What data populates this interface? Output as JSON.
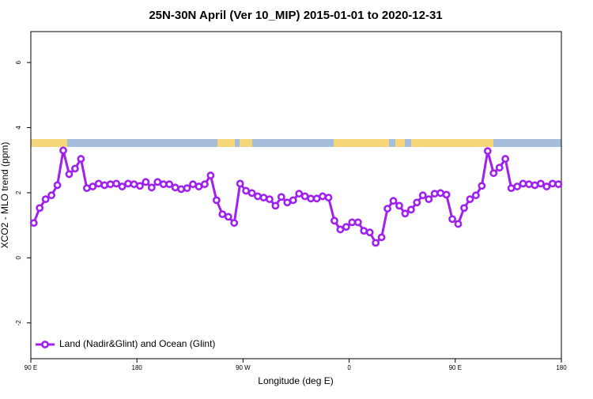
{
  "chart_data": {
    "type": "line",
    "title": "25N-30N April (Ver 10_MIP)   2015-01-01 to 2020-12-31",
    "x_label": "Longitude (deg E)",
    "y_label": "XCO2 - MLO trend (ppm)",
    "xlim": [
      90,
      540
    ],
    "xticks": [
      {
        "value": 90,
        "label": "90 E"
      },
      180,
      {
        "value": 270,
        "label": "90 W"
      },
      {
        "value": 360,
        "label": "0"
      },
      {
        "value": 450,
        "label": "90 E"
      },
      {
        "value": 540,
        "label": "180"
      }
    ],
    "ylim": [
      -3.1,
      6.95
    ],
    "yticks": [
      -2,
      0,
      2,
      4,
      6
    ],
    "legend": "bottom-left",
    "x": [
      92.5,
      97.5,
      102.5,
      107.5,
      112.5,
      117.5,
      122.5,
      127.5,
      132.5,
      137.5,
      142.5,
      147.5,
      152.5,
      157.5,
      162.5,
      167.5,
      172.5,
      177.5,
      182.5,
      187.5,
      192.5,
      197.5,
      202.5,
      207.5,
      212.5,
      217.5,
      222.5,
      227.5,
      232.5,
      237.5,
      242.5,
      247.5,
      252.5,
      257.5,
      262.5,
      267.5,
      272.5,
      277.5,
      282.5,
      287.5,
      292.5,
      297.5,
      302.5,
      307.5,
      312.5,
      317.5,
      322.5,
      327.5,
      332.5,
      337.5,
      342.5,
      347.5,
      352.5,
      357.5,
      362.5,
      367.5,
      372.5,
      377.5,
      382.5,
      387.5,
      392.5,
      397.5,
      402.5,
      407.5,
      412.5,
      417.5,
      422.5,
      427.5,
      432.5,
      437.5,
      442.5,
      447.5,
      452.5,
      457.5,
      462.5,
      467.5,
      472.5,
      477.5,
      482.5,
      487.5,
      492.5,
      497.5,
      502.5,
      507.5,
      512.5,
      517.5,
      522.5,
      527.5,
      532.5,
      537.5
    ],
    "series": [
      {
        "name": "Land (Nadir&Glint) and Ocean (Glint)",
        "color": "#a020f0",
        "values": [
          1.07,
          1.53,
          1.8,
          1.92,
          2.23,
          3.3,
          2.57,
          2.74,
          3.04,
          2.14,
          2.19,
          2.28,
          2.23,
          2.26,
          2.28,
          2.19,
          2.28,
          2.26,
          2.21,
          2.33,
          2.16,
          2.33,
          2.26,
          2.26,
          2.16,
          2.11,
          2.14,
          2.26,
          2.19,
          2.26,
          2.53,
          1.77,
          1.34,
          1.26,
          1.07,
          2.28,
          2.06,
          1.99,
          1.89,
          1.85,
          1.8,
          1.6,
          1.87,
          1.7,
          1.77,
          1.97,
          1.89,
          1.82,
          1.82,
          1.89,
          1.85,
          1.14,
          0.87,
          0.95,
          1.09,
          1.09,
          0.83,
          0.78,
          0.46,
          0.63,
          1.51,
          1.75,
          1.6,
          1.36,
          1.48,
          1.7,
          1.92,
          1.8,
          1.97,
          1.99,
          1.94,
          1.19,
          1.04,
          1.53,
          1.8,
          1.92,
          2.21,
          3.28,
          2.6,
          2.77,
          3.04,
          2.14,
          2.19,
          2.28,
          2.26,
          2.23,
          2.28,
          2.19,
          2.28,
          2.26
        ]
      }
    ]
  }
}
